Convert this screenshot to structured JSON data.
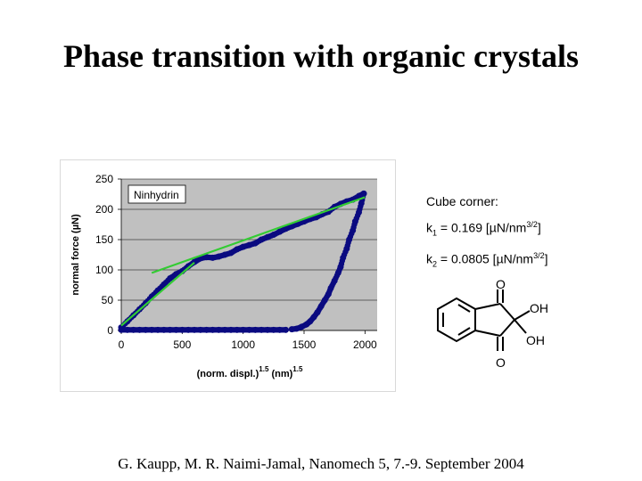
{
  "slide": {
    "title": "Phase transition with organic crystals",
    "citation": "G. Kaupp, M. R. Naimi-Jamal, Nanomech 5, 7.-9. September 2004"
  },
  "constants": {
    "heading": "Cube corner:",
    "k1": {
      "prefix": "k",
      "sub": "1",
      "value": " = 0.169 [µN/nm",
      "sup": "3/2",
      "close": "]"
    },
    "k2": {
      "prefix": "k",
      "sub": "2",
      "value": " = 0.0805 [µN/nm",
      "sup": "3/2",
      "close": "]"
    }
  },
  "molecule": {
    "name": "ninhydrin",
    "labels": {
      "o_top": "O",
      "oh1": "OH",
      "oh2": "OH",
      "o_bottom": "O"
    }
  },
  "chart_data": {
    "type": "scatter",
    "legend_label": "Ninhydrin",
    "xlabel": "(norm. displ.)",
    "xlabel_sup": "1.5",
    "xlabel_unit": " (nm)",
    "xlabel_unit_sup": "1.5",
    "ylabel": "normal force (µN)",
    "xlim": [
      0,
      2100
    ],
    "ylim": [
      0,
      250
    ],
    "xticks": [
      "0",
      "500",
      "1000",
      "1500",
      "2000"
    ],
    "yticks": [
      "0",
      "50",
      "100",
      "150",
      "200",
      "250"
    ],
    "plot_background": "#c0c0c0",
    "marker_color": "#0a0a80",
    "fit_color": "#33cc33",
    "grid": "horizontal",
    "series": [
      {
        "loading": [
          [
            0,
            5
          ],
          [
            50,
            15
          ],
          [
            100,
            25
          ],
          [
            150,
            35
          ],
          [
            200,
            45
          ],
          [
            250,
            56
          ],
          [
            300,
            66
          ],
          [
            350,
            76
          ],
          [
            400,
            86
          ],
          [
            450,
            93
          ],
          [
            500,
            98
          ],
          [
            550,
            106
          ],
          [
            600,
            113
          ],
          [
            650,
            119
          ],
          [
            700,
            121
          ],
          [
            750,
            120
          ],
          [
            800,
            122
          ],
          [
            850,
            125
          ],
          [
            900,
            128
          ],
          [
            950,
            134
          ],
          [
            1000,
            138
          ],
          [
            1050,
            141
          ],
          [
            1100,
            144
          ],
          [
            1150,
            150
          ],
          [
            1200,
            154
          ],
          [
            1250,
            158
          ],
          [
            1300,
            163
          ],
          [
            1350,
            168
          ],
          [
            1400,
            172
          ],
          [
            1450,
            176
          ],
          [
            1500,
            180
          ],
          [
            1550,
            184
          ],
          [
            1600,
            187
          ],
          [
            1650,
            192
          ],
          [
            1700,
            196
          ],
          [
            1750,
            204
          ],
          [
            1800,
            209
          ],
          [
            1850,
            213
          ],
          [
            1900,
            216
          ],
          [
            1950,
            222
          ],
          [
            1990,
            226
          ]
        ],
        "unloading": [
          [
            1990,
            226
          ],
          [
            1970,
            210
          ],
          [
            1950,
            195
          ],
          [
            1920,
            180
          ],
          [
            1900,
            165
          ],
          [
            1870,
            150
          ],
          [
            1850,
            135
          ],
          [
            1820,
            120
          ],
          [
            1800,
            105
          ],
          [
            1780,
            95
          ],
          [
            1750,
            82
          ],
          [
            1720,
            70
          ],
          [
            1700,
            60
          ],
          [
            1670,
            50
          ],
          [
            1640,
            40
          ],
          [
            1610,
            30
          ],
          [
            1580,
            22
          ],
          [
            1550,
            15
          ],
          [
            1520,
            10
          ],
          [
            1480,
            6
          ],
          [
            1440,
            3
          ],
          [
            1400,
            2
          ]
        ],
        "baseline": [
          [
            1350,
            1
          ],
          [
            1300,
            1
          ],
          [
            1250,
            1
          ],
          [
            1200,
            1
          ],
          [
            1150,
            1
          ],
          [
            1100,
            1
          ],
          [
            1050,
            1
          ],
          [
            1000,
            1
          ],
          [
            950,
            1
          ],
          [
            900,
            1
          ],
          [
            850,
            1
          ],
          [
            800,
            1
          ],
          [
            750,
            1
          ],
          [
            700,
            1
          ],
          [
            650,
            1
          ],
          [
            600,
            1
          ],
          [
            550,
            1
          ],
          [
            500,
            1
          ],
          [
            450,
            1
          ],
          [
            400,
            1
          ],
          [
            350,
            1
          ],
          [
            300,
            1
          ],
          [
            250,
            1
          ],
          [
            200,
            1
          ],
          [
            150,
            1
          ],
          [
            100,
            1
          ],
          [
            50,
            1
          ],
          [
            0,
            1
          ]
        ]
      }
    ],
    "fits": [
      {
        "name": "k1",
        "x": [
          0,
          600
        ],
        "y": [
          8,
          112
        ]
      },
      {
        "name": "k2",
        "x": [
          250,
          2000
        ],
        "y": [
          95,
          220
        ]
      }
    ]
  }
}
